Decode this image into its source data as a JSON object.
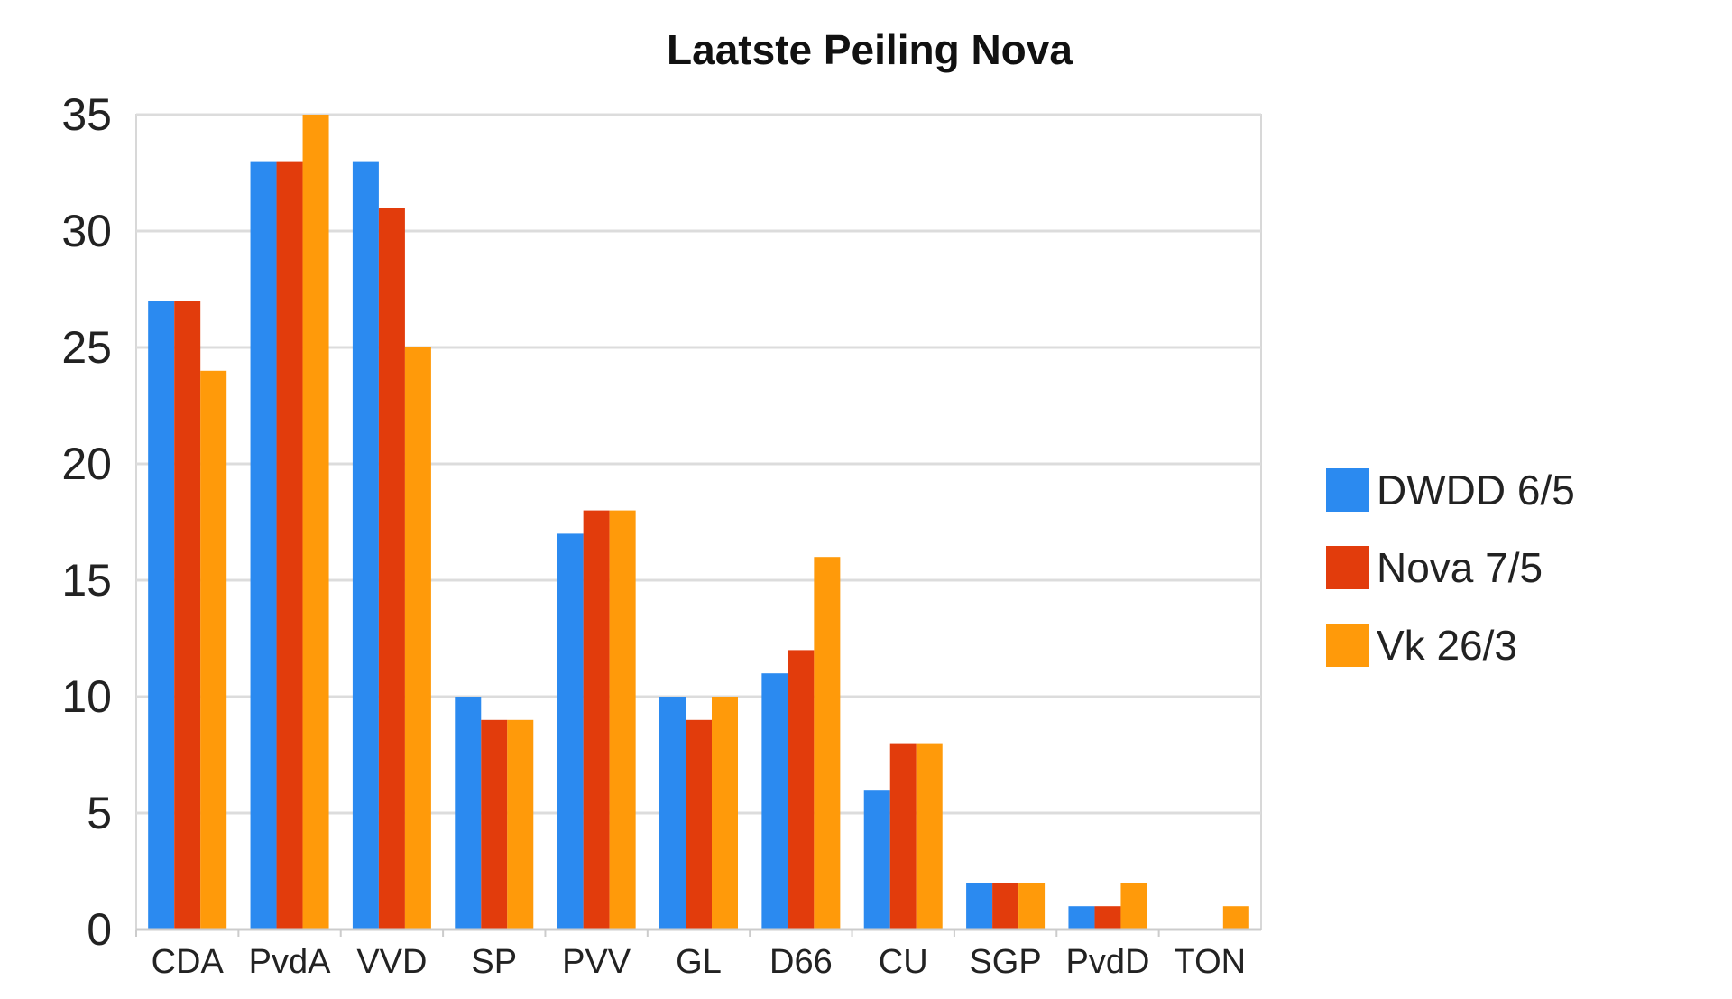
{
  "chart_data": {
    "type": "bar",
    "title": "Laatste Peiling Nova",
    "xlabel": "",
    "ylabel": "",
    "ylim": [
      0,
      35
    ],
    "yticks": [
      0,
      5,
      10,
      15,
      20,
      25,
      30,
      35
    ],
    "grid": true,
    "legend_position": "right",
    "categories": [
      "CDA",
      "PvdA",
      "VVD",
      "SP",
      "PVV",
      "GL",
      "D66",
      "CU",
      "SGP",
      "PvdD",
      "TON"
    ],
    "series": [
      {
        "name": "DWDD 6/5",
        "color": "#2b8af0",
        "values": [
          27,
          33,
          33,
          10,
          17,
          10,
          11,
          6,
          2,
          1,
          0
        ]
      },
      {
        "name": "Nova 7/5",
        "color": "#e23c0c",
        "values": [
          27,
          33,
          31,
          9,
          18,
          9,
          12,
          8,
          2,
          1,
          0
        ]
      },
      {
        "name": "Vk 26/3",
        "color": "#ff9a0a",
        "values": [
          24,
          35,
          25,
          9,
          18,
          10,
          16,
          8,
          2,
          2,
          1
        ]
      }
    ]
  }
}
